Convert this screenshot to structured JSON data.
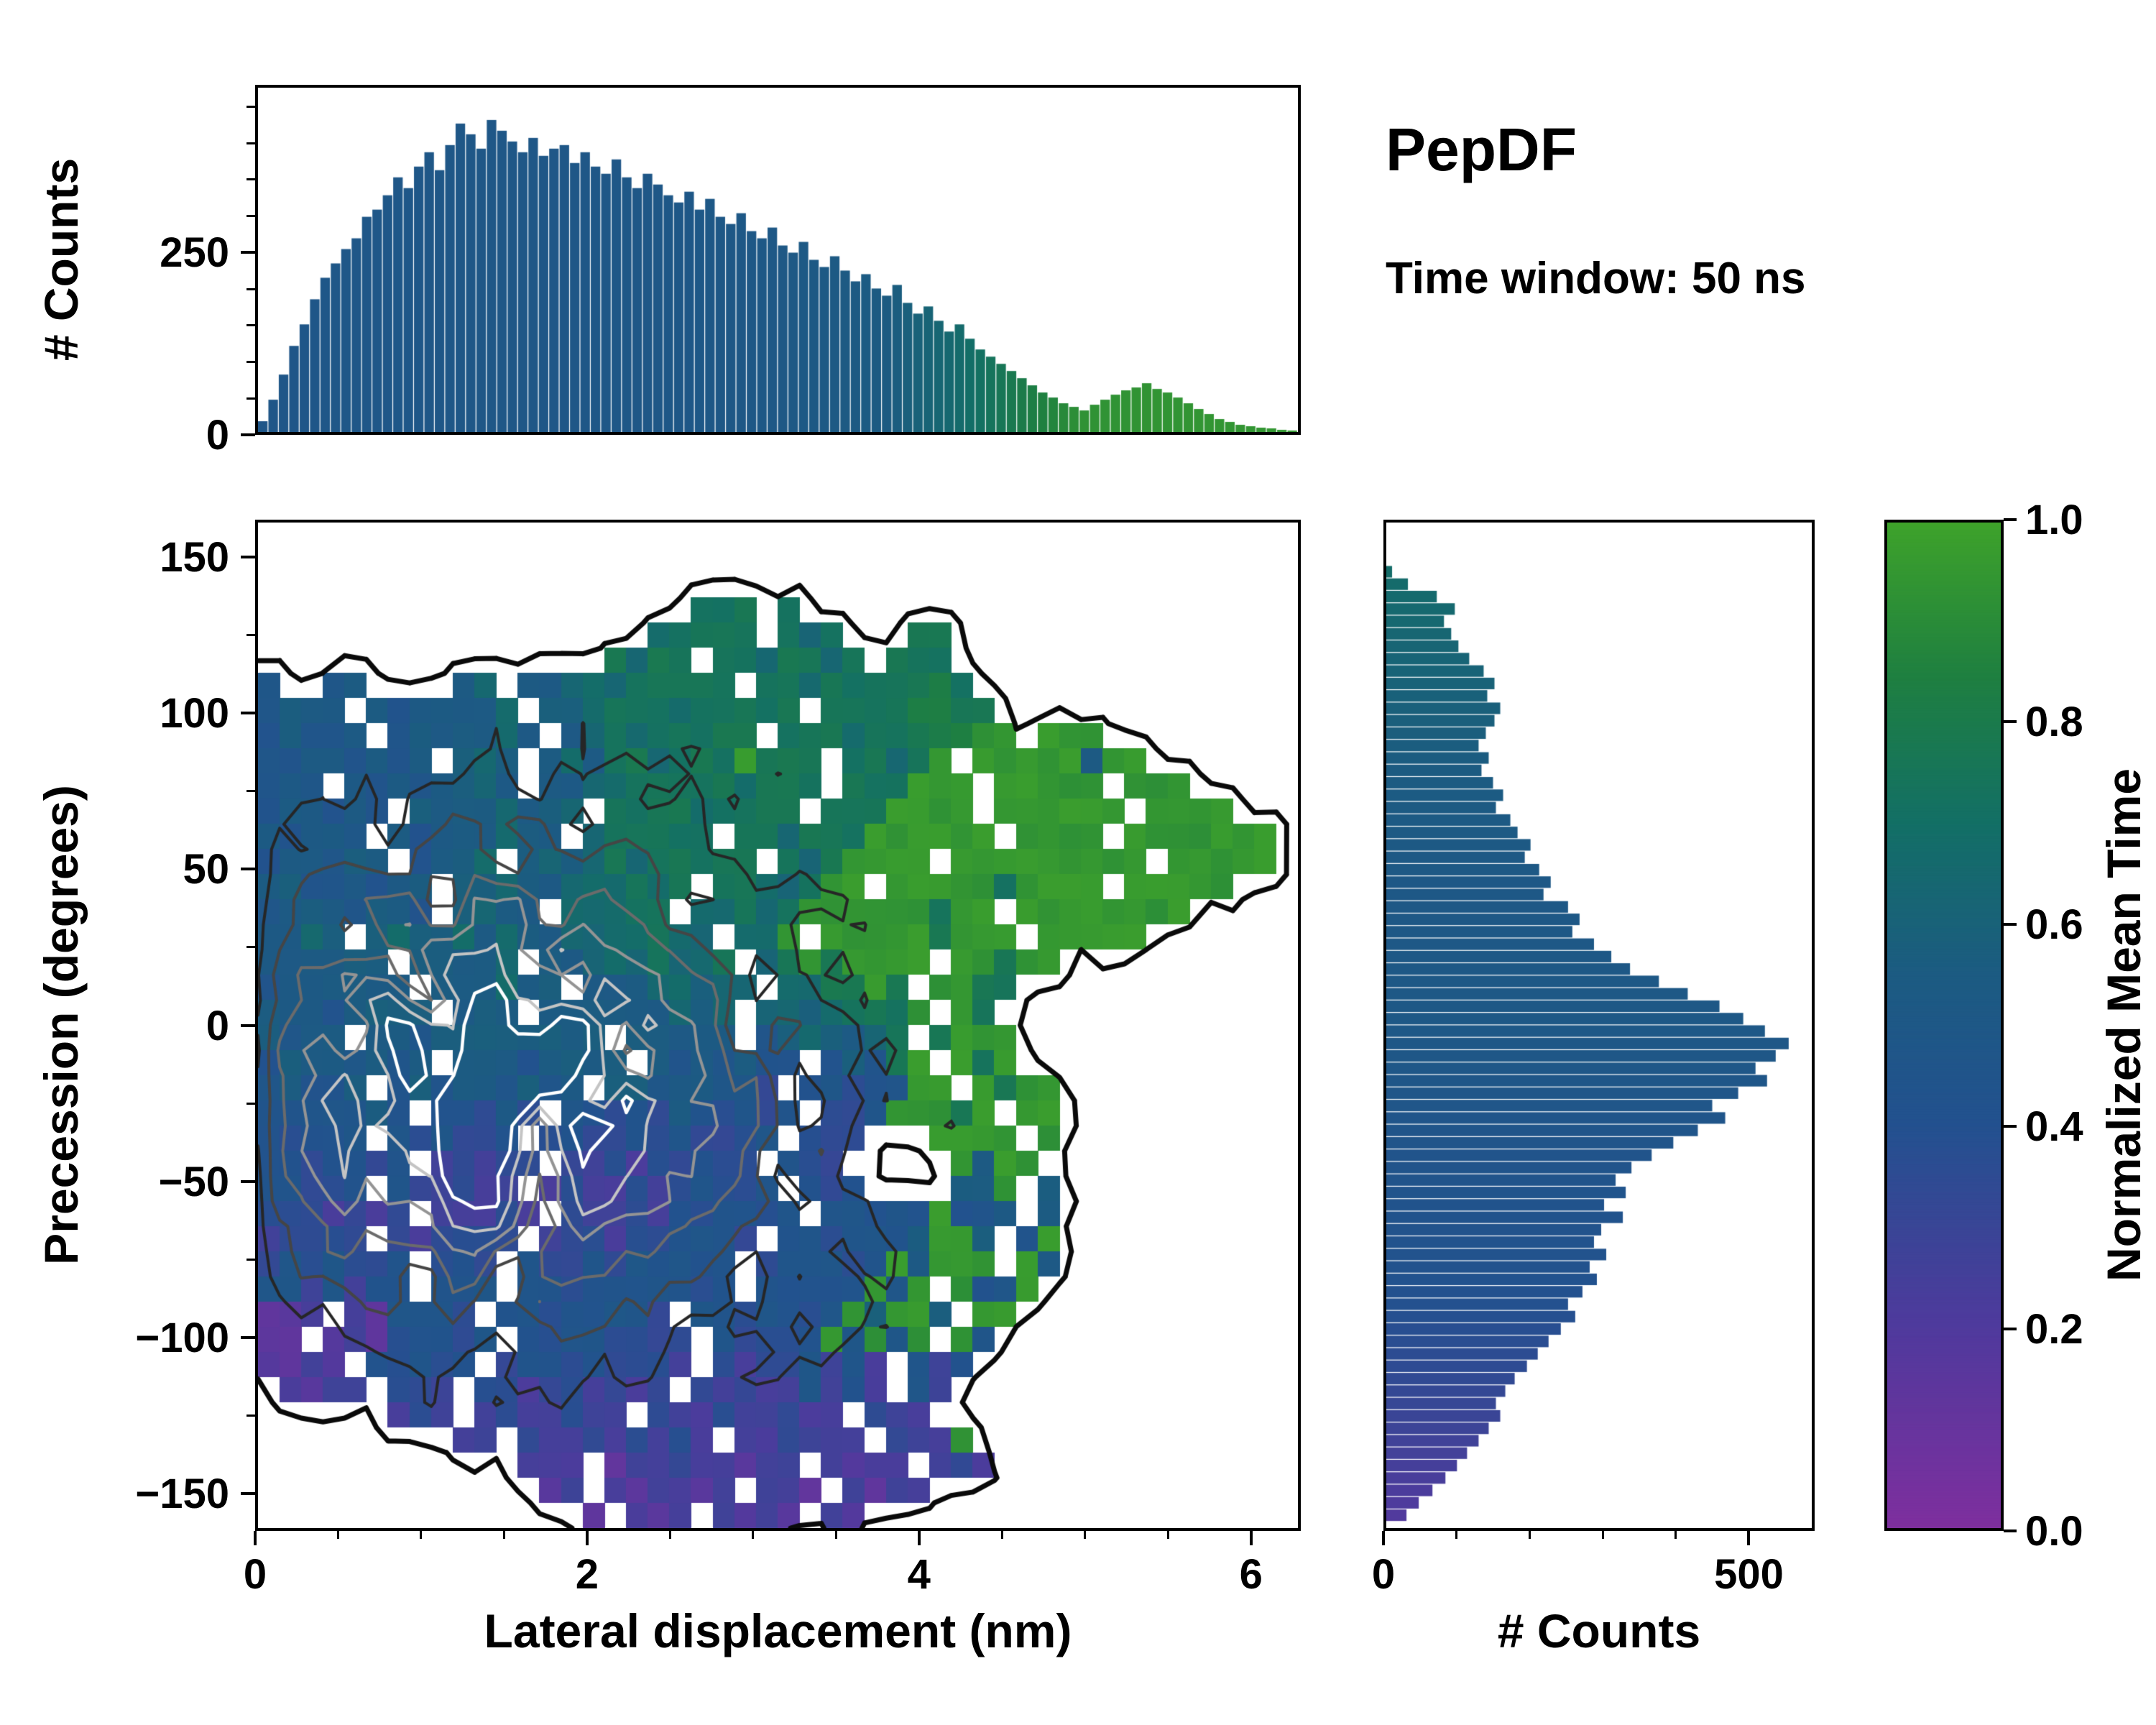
{
  "title": {
    "name": "PepDF",
    "subtitle": "Time window: 50 ns"
  },
  "colors": {
    "background": "#ffffff",
    "axis": "#000000",
    "colormap_stops": [
      [
        0.0,
        "#7e2f9e"
      ],
      [
        0.2,
        "#4f3a9d"
      ],
      [
        0.4,
        "#23518f"
      ],
      [
        0.55,
        "#1c5b82"
      ],
      [
        0.7,
        "#136f66"
      ],
      [
        0.85,
        "#1f8040"
      ],
      [
        1.0,
        "#3ea22b"
      ]
    ]
  },
  "axes": {
    "main": {
      "xlabel": "Lateral displacement (nm)",
      "ylabel": "Precession (degrees)",
      "x_range": [
        0,
        6.3
      ],
      "y_range": [
        -162,
        162
      ],
      "x_ticks": [
        {
          "v": 0,
          "label": "0"
        },
        {
          "v": 2,
          "label": "2"
        },
        {
          "v": 4,
          "label": "4"
        },
        {
          "v": 6,
          "label": "6"
        }
      ],
      "x_minor_step": 0.5,
      "y_ticks": [
        {
          "v": 150,
          "label": "150"
        },
        {
          "v": 100,
          "label": "100"
        },
        {
          "v": 50,
          "label": "50"
        },
        {
          "v": 0,
          "label": "0"
        },
        {
          "v": -50,
          "label": "−50"
        },
        {
          "v": -100,
          "label": "−100"
        },
        {
          "v": -150,
          "label": "−150"
        }
      ],
      "y_minor_step": 25
    },
    "top": {
      "ylabel": "# Counts",
      "y_range": [
        0,
        480
      ],
      "y_ticks": [
        {
          "v": 0,
          "label": "0"
        },
        {
          "v": 250,
          "label": "250"
        }
      ],
      "y_minor_step": 50
    },
    "right": {
      "xlabel": "# Counts",
      "x_range": [
        0,
        590
      ],
      "x_ticks": [
        {
          "v": 0,
          "label": "0"
        },
        {
          "v": 500,
          "label": "500"
        }
      ],
      "x_minor_step": 100
    },
    "colorbar": {
      "label": "Normalized Mean Time",
      "range": [
        0,
        1
      ],
      "ticks": [
        {
          "v": 1.0,
          "label": "1.0"
        },
        {
          "v": 0.8,
          "label": "0.8"
        },
        {
          "v": 0.6,
          "label": "0.6"
        },
        {
          "v": 0.4,
          "label": "0.4"
        },
        {
          "v": 0.2,
          "label": "0.2"
        },
        {
          "v": 0.0,
          "label": "0.0"
        }
      ]
    }
  },
  "chart_data": [
    {
      "name": "top_histogram",
      "type": "bar",
      "orientation": "vertical",
      "x0": 0.0,
      "bin_width": 0.063,
      "y_max": 480,
      "counts": [
        15,
        45,
        80,
        120,
        150,
        185,
        215,
        235,
        255,
        270,
        300,
        310,
        330,
        355,
        340,
        370,
        390,
        365,
        400,
        430,
        415,
        395,
        435,
        420,
        405,
        390,
        410,
        385,
        395,
        400,
        375,
        390,
        370,
        360,
        380,
        355,
        340,
        360,
        345,
        330,
        320,
        335,
        310,
        325,
        300,
        290,
        305,
        280,
        270,
        285,
        260,
        250,
        265,
        240,
        230,
        245,
        225,
        210,
        220,
        200,
        190,
        205,
        180,
        165,
        175,
        155,
        140,
        150,
        130,
        115,
        105,
        95,
        85,
        75,
        65,
        55,
        48,
        40,
        35,
        30,
        38,
        45,
        52,
        58,
        62,
        68,
        60,
        55,
        48,
        40,
        32,
        25,
        18,
        14,
        10,
        8,
        6,
        5,
        3,
        2
      ],
      "color_by_x": [
        [
          0,
          0.48
        ],
        [
          3.0,
          0.5
        ],
        [
          3.8,
          0.55
        ],
        [
          4.2,
          0.65
        ],
        [
          4.6,
          0.8
        ],
        [
          5.0,
          0.93
        ],
        [
          6.3,
          0.95
        ]
      ]
    },
    {
      "name": "precession_heatmap",
      "type": "heatmap",
      "x_min": 0.0,
      "x_max": 6.3,
      "y_min": -162,
      "y_max": 162,
      "ncols": 48,
      "nrows": 40,
      "value_scale": "char '0'-'9' -> normalized mean time (digit+0.5)/10 ; '.' -> no data",
      "rows": [
        "................................................",
        "................................................",
        "................................................",
        "....................777.7.......................",
        "..................67777.767...77................",
        "................7677.7767767.777................",
        "4..45....56.5566677777.7767777787...............",
        "4555.5455556.556777677777.77778877..............",
        "45445.4555565.567677777.77767778899.999.........",
        "44554545.565.5657767779777.77679.99999599.......",
        "454.54545565.5566777776777.777999.99999.999.....",
        "455454.55556556.777767777.7779999.999999.9999...",
        "54554.54555655.677777.776777999999.9999.9999999.",
        "455455.4556.56567677777.7679999.999999999.99999.",
        "55445455.55655666767.7766799.9999979999.99999...",
        "45554554.5655.66677.66767999999799.99999999.....",
        "5565.5655656556666766.669.999997999.99999.......",
        "555555.55556.556667667.67979999.99799...........",
        "4555555.555655.55566566.667797.9977.............",
        "55545555.555.555555656.66567779.97..............",
        "5455.55455555555.55555.4565567.7999.............",
        "45554545.55545555.5454544.45479.979.............",
        "45445.454554545.55455443.4434499.9799...........",
        "4444454.44353.44343543434.33499979.99...........",
        "43444.434334.34334343334.333...9999.9...........",
        "4434434.23233.323233433.433.....9599............",
        "44334.432322.23223234334.434....559.5...........",
        "3332323.22232.32232434434.444449445.5...........",
        "23333.323333.2332334443.4434445995.49...........",
        "3434334.343.4334344444.34443495999.95...........",
        "4424244.444.4434444434.44444949.9449............",
        "112.214443.44344443.443443495995.99.............",
        "11.12134434.43443333.4333494949.94..............",
        "1121.43434.344343332.32334242.424...............",
        ".2122.332.332332323.323224242.42................",
        "......232.2322322.322322322.322.................",
        ".........22.322323232.223222.3229...............",
        "............222.122322122.2122.232..............",
        ".............12.212212.221.2122.................",
        "...............1.212.2121.21...................."
      ]
    },
    {
      "name": "density_contours",
      "type": "contour",
      "base": 1,
      "noise": 1.3,
      "levels": [
        0.2,
        2,
        3.5,
        5,
        6.5,
        8,
        9.5
      ],
      "colors": [
        "#0a0a0a",
        "#262626",
        "#454545",
        "#6b6b6b",
        "#949494",
        "#c4c4c4",
        "#ffffff"
      ],
      "peaks": [
        {
          "x": 1.3,
          "y": -15,
          "sx": 0.85,
          "sy": 42,
          "amp": 7.5
        },
        {
          "x": 0.75,
          "y": -40,
          "sx": 0.45,
          "sy": 25,
          "amp": 2.5
        },
        {
          "x": 2.1,
          "y": -25,
          "sx": 0.7,
          "sy": 35,
          "amp": 2.8
        },
        {
          "x": 1.6,
          "y": 30,
          "sx": 1.1,
          "sy": 45,
          "amp": 1.8
        },
        {
          "x": 2.9,
          "y": -55,
          "sx": 0.9,
          "sy": 38,
          "amp": 1.6
        },
        {
          "x": 1.2,
          "y": -75,
          "sx": 0.8,
          "sy": 30,
          "amp": 1.5
        }
      ]
    },
    {
      "name": "right_histogram",
      "type": "bar",
      "orientation": "horizontal",
      "y_top": 160,
      "bin_height": 4,
      "x_max": 590,
      "counts": [
        0,
        0,
        0,
        8,
        30,
        70,
        95,
        80,
        90,
        100,
        115,
        135,
        150,
        140,
        158,
        150,
        138,
        128,
        142,
        132,
        148,
        162,
        152,
        172,
        182,
        200,
        192,
        212,
        228,
        218,
        252,
        268,
        258,
        288,
        312,
        338,
        378,
        418,
        462,
        495,
        525,
        558,
        540,
        512,
        528,
        488,
        452,
        470,
        432,
        398,
        368,
        340,
        318,
        332,
        302,
        328,
        298,
        288,
        305,
        282,
        292,
        272,
        252,
        262,
        242,
        225,
        210,
        195,
        178,
        165,
        152,
        158,
        142,
        128,
        112,
        98,
        82,
        64,
        45,
        28
      ],
      "color_by_y": [
        [
          -162,
          0.18
        ],
        [
          -140,
          0.25
        ],
        [
          -110,
          0.35
        ],
        [
          -80,
          0.42
        ],
        [
          -40,
          0.45
        ],
        [
          0,
          0.5
        ],
        [
          40,
          0.5
        ],
        [
          80,
          0.55
        ],
        [
          120,
          0.62
        ],
        [
          162,
          0.72
        ]
      ]
    },
    {
      "name": "colorbar",
      "type": "colorbar",
      "range": [
        0,
        1
      ]
    }
  ]
}
